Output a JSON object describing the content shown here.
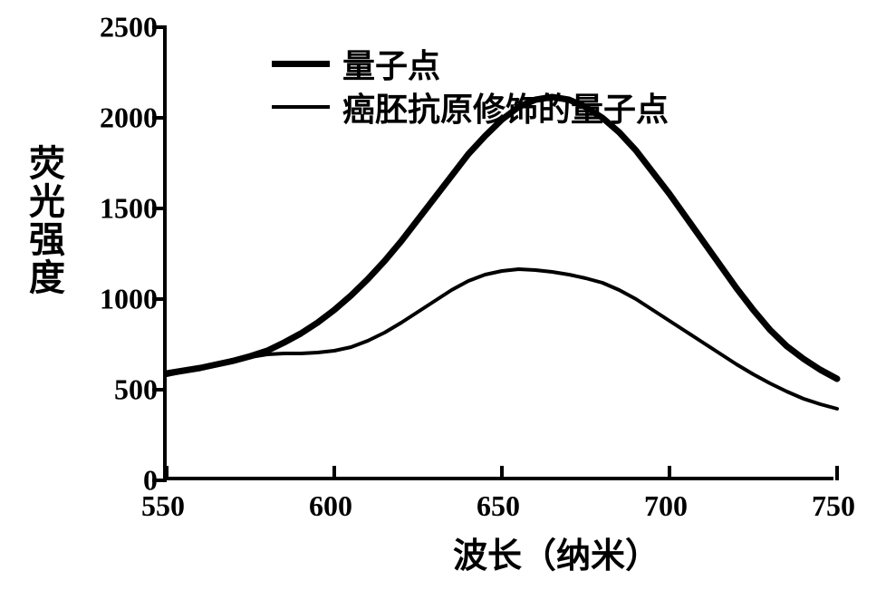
{
  "chart": {
    "type": "line",
    "background_color": "#ffffff",
    "axis_color": "#000000",
    "axis_linewidth": 4,
    "tick_length": 16,
    "xlim": [
      550,
      750
    ],
    "ylim": [
      0,
      2500
    ],
    "xticks": [
      550,
      600,
      650,
      700,
      750
    ],
    "yticks": [
      0,
      500,
      1000,
      1500,
      2000,
      2500
    ],
    "xlabel": "波长（纳米）",
    "ylabel": "荧光强度",
    "label_fontsize": 38,
    "tick_fontsize": 32,
    "legend_fontsize": 36,
    "legend_pos": "upper-left-inset",
    "series": [
      {
        "name": "量子点",
        "color": "#000000",
        "linewidth": 7,
        "data": [
          [
            550,
            590
          ],
          [
            555,
            605
          ],
          [
            560,
            620
          ],
          [
            565,
            640
          ],
          [
            570,
            660
          ],
          [
            575,
            685
          ],
          [
            580,
            715
          ],
          [
            585,
            760
          ],
          [
            590,
            810
          ],
          [
            595,
            870
          ],
          [
            600,
            940
          ],
          [
            605,
            1020
          ],
          [
            610,
            1110
          ],
          [
            615,
            1210
          ],
          [
            620,
            1320
          ],
          [
            625,
            1440
          ],
          [
            630,
            1560
          ],
          [
            635,
            1680
          ],
          [
            640,
            1800
          ],
          [
            645,
            1900
          ],
          [
            650,
            1990
          ],
          [
            655,
            2060
          ],
          [
            660,
            2100
          ],
          [
            665,
            2115
          ],
          [
            670,
            2100
          ],
          [
            675,
            2060
          ],
          [
            680,
            2000
          ],
          [
            685,
            1920
          ],
          [
            690,
            1820
          ],
          [
            695,
            1700
          ],
          [
            700,
            1580
          ],
          [
            705,
            1450
          ],
          [
            710,
            1320
          ],
          [
            715,
            1190
          ],
          [
            720,
            1060
          ],
          [
            725,
            940
          ],
          [
            730,
            830
          ],
          [
            735,
            740
          ],
          [
            740,
            670
          ],
          [
            745,
            610
          ],
          [
            750,
            560
          ]
        ]
      },
      {
        "name": "癌胚抗原修饰的量子点",
        "color": "#000000",
        "linewidth": 4,
        "data": [
          [
            550,
            580
          ],
          [
            555,
            600
          ],
          [
            560,
            620
          ],
          [
            565,
            640
          ],
          [
            570,
            660
          ],
          [
            575,
            680
          ],
          [
            580,
            695
          ],
          [
            585,
            700
          ],
          [
            590,
            700
          ],
          [
            595,
            705
          ],
          [
            600,
            715
          ],
          [
            605,
            735
          ],
          [
            610,
            770
          ],
          [
            615,
            815
          ],
          [
            620,
            870
          ],
          [
            625,
            930
          ],
          [
            630,
            990
          ],
          [
            635,
            1050
          ],
          [
            640,
            1100
          ],
          [
            645,
            1135
          ],
          [
            650,
            1155
          ],
          [
            655,
            1165
          ],
          [
            660,
            1160
          ],
          [
            665,
            1150
          ],
          [
            670,
            1135
          ],
          [
            675,
            1115
          ],
          [
            680,
            1090
          ],
          [
            685,
            1050
          ],
          [
            690,
            1000
          ],
          [
            695,
            940
          ],
          [
            700,
            880
          ],
          [
            705,
            820
          ],
          [
            710,
            760
          ],
          [
            715,
            700
          ],
          [
            720,
            640
          ],
          [
            725,
            585
          ],
          [
            730,
            535
          ],
          [
            735,
            490
          ],
          [
            740,
            450
          ],
          [
            745,
            420
          ],
          [
            750,
            395
          ]
        ]
      }
    ]
  }
}
